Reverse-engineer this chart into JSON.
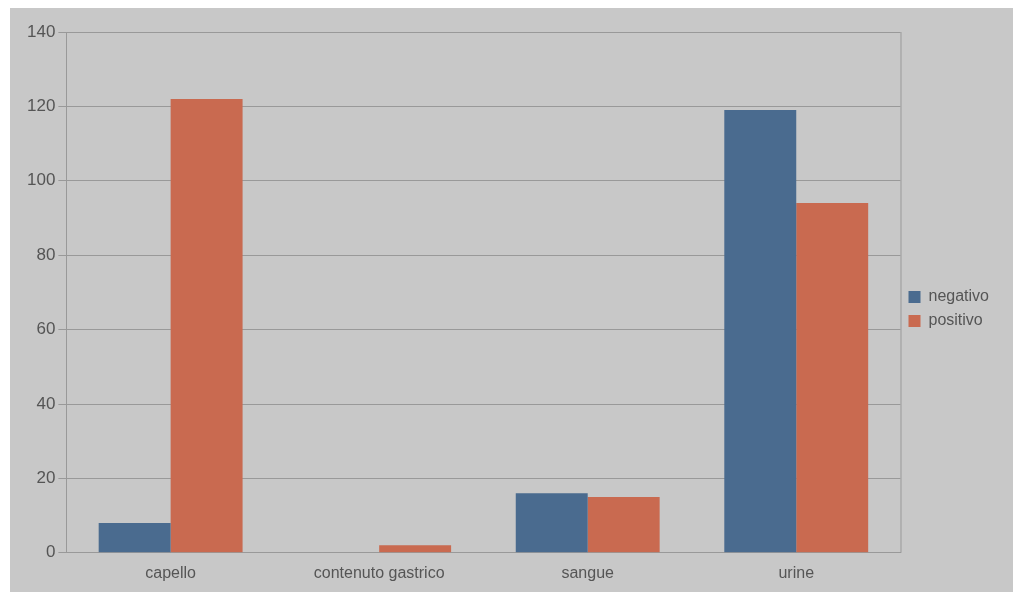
{
  "chart_data": {
    "type": "bar",
    "categories": [
      "capello",
      "contenuto gastrico",
      "sangue",
      "urine"
    ],
    "series": [
      {
        "name": "negativo",
        "color": "#4a6b8f",
        "values": [
          8,
          0,
          16,
          119
        ]
      },
      {
        "name": "positivo",
        "color": "#c96a50",
        "values": [
          122,
          2,
          15,
          94
        ]
      }
    ],
    "ylim": [
      0,
      140
    ],
    "yticks": [
      0,
      20,
      40,
      60,
      80,
      100,
      120,
      140
    ],
    "grid": "y",
    "legend": "right"
  }
}
